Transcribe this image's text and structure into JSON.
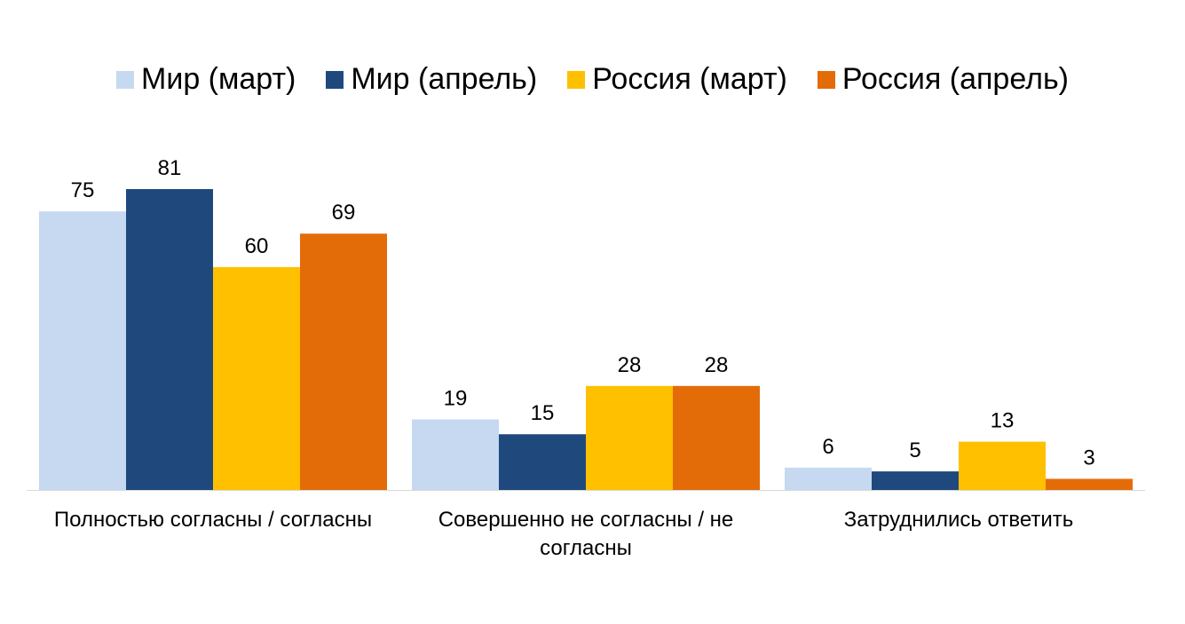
{
  "chart_data": {
    "type": "bar",
    "categories": [
      "Полностью согласны / согласны",
      "Совершенно не согласны / не согласны",
      "Затруднились ответить"
    ],
    "series": [
      {
        "name": "Мир (март)",
        "color": "#c6d9f0",
        "values": [
          75,
          19,
          6
        ]
      },
      {
        "name": "Мир (апрель)",
        "color": "#1f497d",
        "values": [
          81,
          15,
          5
        ]
      },
      {
        "name": "Россия (март)",
        "color": "#ffc000",
        "values": [
          60,
          28,
          13
        ]
      },
      {
        "name": "Россия (апрель)",
        "color": "#e36c09",
        "values": [
          69,
          28,
          3
        ]
      }
    ]
  }
}
